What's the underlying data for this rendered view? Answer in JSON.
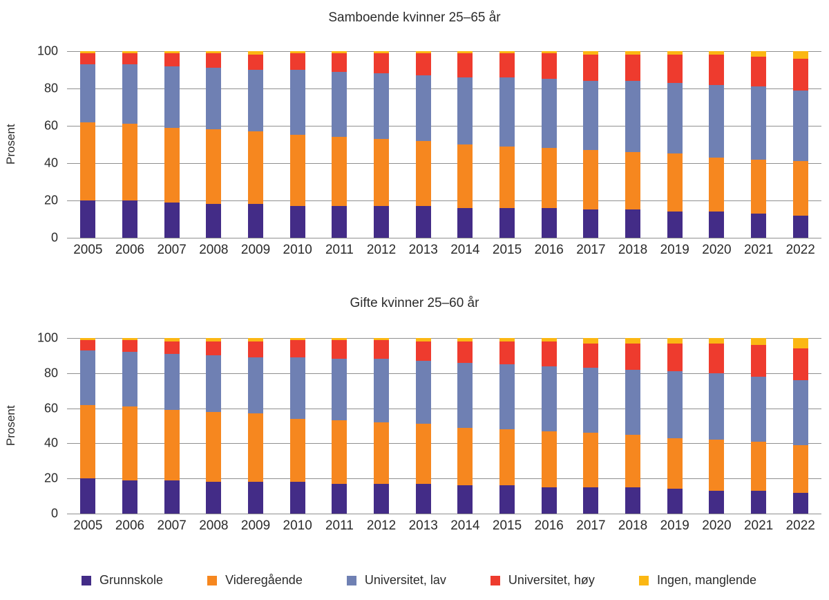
{
  "y_axis": {
    "label": "Prosent"
  },
  "legend": [
    {
      "label": "Grunnskole",
      "color": "#432c87"
    },
    {
      "label": "Videregående",
      "color": "#f6871f"
    },
    {
      "label": "Universitet, lav",
      "color": "#6f80b3"
    },
    {
      "label": "Universitet, høy",
      "color": "#ee3b2e"
    },
    {
      "label": "Ingen, manglende",
      "color": "#fbb713"
    }
  ],
  "chart_data": [
    {
      "type": "bar",
      "stacked": true,
      "title": "Samboende kvinner 25–65 år",
      "ylabel": "Prosent",
      "ylim": [
        0,
        100
      ],
      "yticks": [
        0,
        20,
        40,
        60,
        80,
        100
      ],
      "grid": "horizontal",
      "categories": [
        "2005",
        "2006",
        "2007",
        "2008",
        "2009",
        "2010",
        "2011",
        "2012",
        "2013",
        "2014",
        "2015",
        "2016",
        "2017",
        "2018",
        "2019",
        "2020",
        "2021",
        "2022"
      ],
      "series": [
        {
          "name": "Grunnskole",
          "color": "#432c87",
          "values": [
            20,
            20,
            19,
            18,
            18,
            17,
            17,
            17,
            17,
            16,
            16,
            16,
            15,
            15,
            14,
            14,
            13,
            12
          ]
        },
        {
          "name": "Videregående",
          "color": "#f6871f",
          "values": [
            42,
            41,
            40,
            40,
            39,
            38,
            37,
            36,
            35,
            34,
            33,
            32,
            32,
            31,
            31,
            29,
            29,
            29
          ]
        },
        {
          "name": "Universitet, lav",
          "color": "#6f80b3",
          "values": [
            31,
            32,
            33,
            33,
            33,
            35,
            35,
            35,
            35,
            36,
            37,
            37,
            37,
            38,
            38,
            39,
            39,
            38
          ]
        },
        {
          "name": "Universitet, høy",
          "color": "#ee3b2e",
          "values": [
            6,
            6,
            7,
            8,
            8,
            9,
            10,
            11,
            12,
            13,
            13,
            14,
            14,
            14,
            15,
            16,
            16,
            17
          ]
        },
        {
          "name": "Ingen, manglende",
          "color": "#fbb713",
          "values": [
            1,
            1,
            1,
            1,
            2,
            1,
            1,
            1,
            1,
            1,
            1,
            1,
            2,
            2,
            2,
            2,
            3,
            4
          ]
        }
      ]
    },
    {
      "type": "bar",
      "stacked": true,
      "title": "Gifte kvinner 25–60 år",
      "ylabel": "Prosent",
      "ylim": [
        0,
        100
      ],
      "yticks": [
        0,
        20,
        40,
        60,
        80,
        100
      ],
      "grid": "horizontal",
      "categories": [
        "2005",
        "2006",
        "2007",
        "2008",
        "2009",
        "2010",
        "2011",
        "2012",
        "2013",
        "2014",
        "2015",
        "2016",
        "2017",
        "2018",
        "2019",
        "2020",
        "2021",
        "2022"
      ],
      "series": [
        {
          "name": "Grunnskole",
          "color": "#432c87",
          "values": [
            20,
            19,
            19,
            18,
            18,
            18,
            17,
            17,
            17,
            16,
            16,
            15,
            15,
            15,
            14,
            13,
            13,
            12
          ]
        },
        {
          "name": "Videregående",
          "color": "#f6871f",
          "values": [
            42,
            42,
            40,
            40,
            39,
            36,
            36,
            35,
            34,
            33,
            32,
            32,
            31,
            30,
            29,
            29,
            28,
            27
          ]
        },
        {
          "name": "Universitet, lav",
          "color": "#6f80b3",
          "values": [
            31,
            31,
            32,
            32,
            32,
            35,
            35,
            36,
            36,
            37,
            37,
            37,
            37,
            37,
            38,
            38,
            37,
            37
          ]
        },
        {
          "name": "Universitet, høy",
          "color": "#ee3b2e",
          "values": [
            6,
            7,
            7,
            8,
            9,
            10,
            11,
            11,
            11,
            12,
            13,
            14,
            14,
            15,
            16,
            17,
            18,
            18
          ]
        },
        {
          "name": "Ingen, manglende",
          "color": "#fbb713",
          "values": [
            1,
            1,
            2,
            2,
            2,
            1,
            1,
            1,
            2,
            2,
            2,
            2,
            3,
            3,
            3,
            3,
            4,
            6
          ]
        }
      ]
    }
  ]
}
